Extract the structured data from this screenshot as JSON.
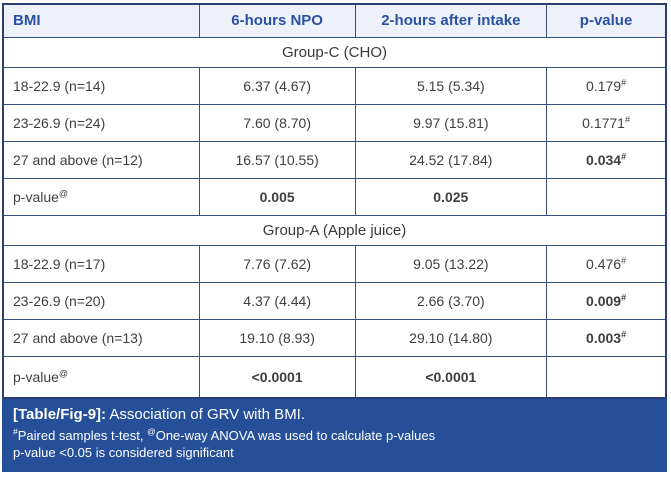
{
  "colors": {
    "caption_bg": "#254f99",
    "header_text": "#2b51a5",
    "table_border": "#35517f",
    "outer_border": "#2b3f70",
    "body_text": "#3f3f43"
  },
  "table": {
    "columns": [
      "BMI",
      "6-hours NPO",
      "2-hours after intake",
      "p-value"
    ],
    "rows": [
      {
        "type": "group",
        "label": "Group-C (CHO)"
      },
      {
        "type": "data",
        "label": "18-22.9 (n=14)",
        "npo": "6.37 (4.67)",
        "intake": "5.15 (5.34)",
        "p": "0.179",
        "p_sup": "#",
        "p_bold": false
      },
      {
        "type": "data",
        "label": "23-26.9 (n=24)",
        "npo": "7.60 (8.70)",
        "intake": "9.97 (15.81)",
        "p": "0.1771",
        "p_sup": "#",
        "p_bold": false
      },
      {
        "type": "data",
        "label": "27 and above (n=12)",
        "npo": "16.57 (10.55)",
        "intake": "24.52 (17.84)",
        "p": "0.034",
        "p_sup": "#",
        "p_bold": true
      },
      {
        "type": "pvalue",
        "label": "p-value",
        "label_sup": "@",
        "npo": "0.005",
        "intake": "0.025",
        "p": "",
        "p_sup": "",
        "p_bold": false
      },
      {
        "type": "group",
        "label": "Group-A (Apple juice)"
      },
      {
        "type": "data",
        "label": "18-22.9 (n=17)",
        "npo": "7.76 (7.62)",
        "intake": "9.05 (13.22)",
        "p": "0.476",
        "p_sup": "#",
        "p_bold": false
      },
      {
        "type": "data",
        "label": "23-26.9 (n=20)",
        "npo": "4.37 (4.44)",
        "intake": "2.66 (3.70)",
        "p": "0.009",
        "p_sup": "#",
        "p_bold": true
      },
      {
        "type": "data",
        "label": "27 and above (n=13)",
        "npo": "19.10 (8.93)",
        "intake": "29.10 (14.80)",
        "p": "0.003",
        "p_sup": "#",
        "p_bold": true
      },
      {
        "type": "pvalue",
        "label": "p-value",
        "label_sup": "@",
        "npo": "<0.0001",
        "intake": "<0.0001",
        "p": "",
        "p_sup": "",
        "p_bold": false
      }
    ]
  },
  "caption": {
    "tag": "[Table/Fig-9]:",
    "title": "Association of GRV with BMI.",
    "fn1_sup_a": "#",
    "fn1_text_a": "Paired samples t-test, ",
    "fn1_sup_b": "@",
    "fn1_text_b": "One-way ANOVA was used to calculate p-values",
    "fn2": "p-value <0.05 is considered significant"
  }
}
